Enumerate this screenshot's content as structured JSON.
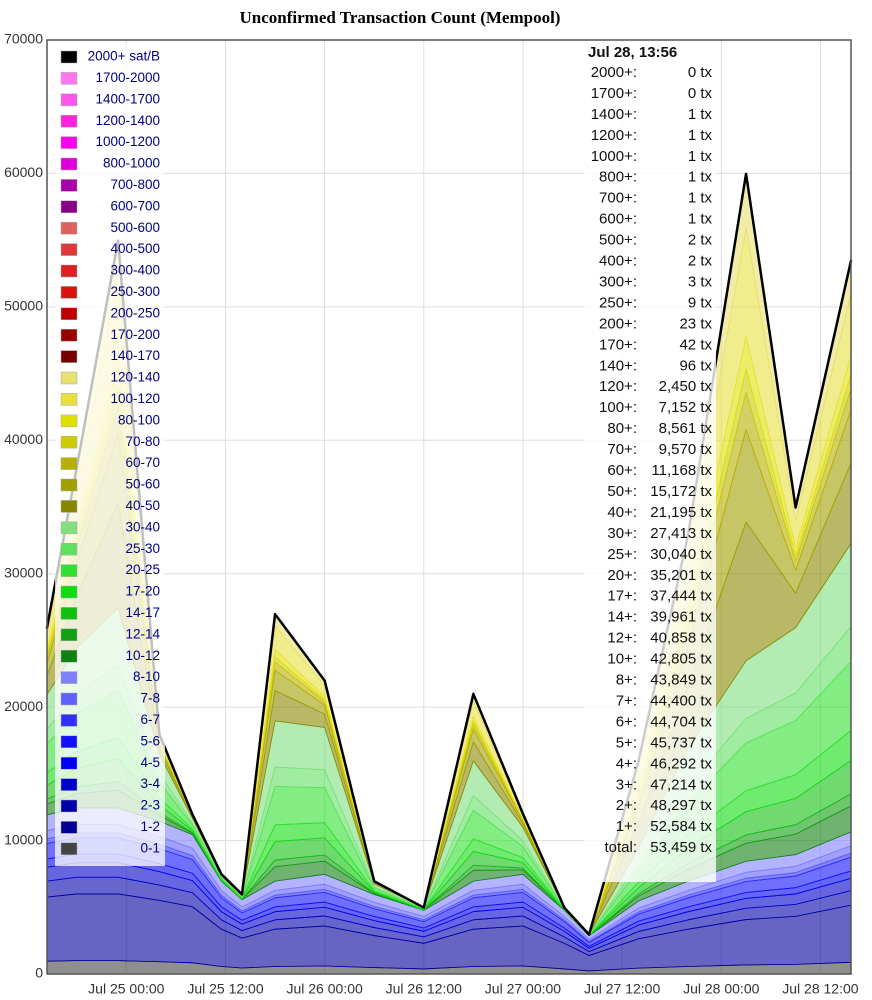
{
  "chart_data": {
    "type": "stacked-area",
    "title": "Unconfirmed Transaction Count (Mempool)",
    "x": [
      -9.6,
      -6,
      -1,
      4,
      8,
      11.5,
      14,
      18,
      24,
      30,
      36,
      42,
      48,
      53,
      56,
      62,
      68,
      75,
      81,
      87.7
    ],
    "xlim": [
      -9.6,
      87.7
    ],
    "xticks": [
      {
        "value": 0,
        "label": "Jul 25 00:00"
      },
      {
        "value": 12,
        "label": "Jul 25 12:00"
      },
      {
        "value": 24,
        "label": "Jul 26 00:00"
      },
      {
        "value": 36,
        "label": "Jul 26 12:00"
      },
      {
        "value": 48,
        "label": "Jul 27 00:00"
      },
      {
        "value": 60,
        "label": "Jul 27 12:00"
      },
      {
        "value": 72,
        "label": "Jul 28 00:00"
      },
      {
        "value": 84,
        "label": "Jul 28 12:00"
      }
    ],
    "ylim": [
      0,
      70000
    ],
    "yticks": [
      0,
      10000,
      20000,
      30000,
      40000,
      50000,
      60000,
      70000
    ],
    "grid": true,
    "series": [
      {
        "name": "0-1",
        "color": "#444444",
        "values": [
          960,
          1000,
          1000,
          920,
          840,
          560,
          450,
          560,
          600,
          480,
          380,
          560,
          600,
          380,
          230,
          440,
          560,
          680,
          720,
          875
        ]
      },
      {
        "name": "1-2",
        "color": "#000099",
        "values": [
          4800,
          5000,
          5000,
          4600,
          4200,
          2800,
          2240,
          2800,
          3000,
          2400,
          1920,
          2800,
          3000,
          1920,
          1160,
          2200,
          2800,
          3400,
          3600,
          4287
        ]
      },
      {
        "name": "2-3",
        "color": "#0000aa",
        "values": [
          1200,
          1250,
          1250,
          1150,
          1050,
          700,
          560,
          700,
          750,
          600,
          480,
          700,
          750,
          480,
          290,
          550,
          700,
          850,
          900,
          1083
        ]
      },
      {
        "name": "3-4",
        "color": "#0000cc",
        "values": [
          1040,
          1090,
          1090,
          1000,
          910,
          610,
          490,
          610,
          650,
          520,
          420,
          610,
          650,
          420,
          250,
          480,
          610,
          740,
          780,
          922
        ]
      },
      {
        "name": "4-5",
        "color": "#0000ee",
        "values": [
          620,
          650,
          650,
          600,
          550,
          360,
          290,
          360,
          390,
          310,
          250,
          360,
          390,
          250,
          150,
          290,
          360,
          440,
          470,
          555
        ]
      },
      {
        "name": "5-6",
        "color": "#1010ff",
        "values": [
          1160,
          1210,
          1210,
          1120,
          1020,
          680,
          540,
          680,
          730,
          580,
          470,
          680,
          730,
          470,
          280,
          530,
          680,
          820,
          870,
          1033
        ]
      },
      {
        "name": "6-7",
        "color": "#3030ff",
        "values": [
          350,
          360,
          360,
          330,
          300,
          200,
          160,
          200,
          220,
          170,
          140,
          200,
          220,
          140,
          80,
          160,
          200,
          250,
          260,
          304
        ]
      },
      {
        "name": "7-8",
        "color": "#6060ff",
        "values": [
          620,
          650,
          650,
          600,
          550,
          360,
          290,
          360,
          390,
          310,
          250,
          360,
          390,
          250,
          150,
          290,
          360,
          440,
          470,
          551
        ]
      },
      {
        "name": "8-10",
        "color": "#8080ff",
        "values": [
          1180,
          1230,
          1230,
          1130,
          1030,
          690,
          550,
          690,
          740,
          590,
          470,
          690,
          740,
          470,
          280,
          540,
          690,
          830,
          880,
          1044
        ]
      },
      {
        "name": "10-12",
        "color": "#108010",
        "values": [
          810,
          1080,
          1350,
          450,
          110,
          40,
          30,
          1080,
          990,
          70,
          20,
          810,
          320,
          20,
          10,
          360,
          900,
          1350,
          1530,
          1947
        ]
      },
      {
        "name": "12-14",
        "color": "#10a010",
        "values": [
          380,
          500,
          630,
          210,
          50,
          20,
          10,
          500,
          460,
          30,
          10,
          380,
          150,
          10,
          0,
          170,
          420,
          630,
          710,
          897
        ]
      },
      {
        "name": "14-17",
        "color": "#10c010",
        "values": [
          1040,
          1390,
          1740,
          580,
          140,
          50,
          30,
          1390,
          1280,
          90,
          20,
          1040,
          410,
          20,
          10,
          460,
          1160,
          1740,
          1970,
          2517
        ]
      },
      {
        "name": "17-20",
        "color": "#10dd10",
        "values": [
          940,
          1250,
          1560,
          520,
          120,
          40,
          30,
          1250,
          1140,
          80,
          20,
          940,
          360,
          20,
          10,
          420,
          1040,
          1560,
          1770,
          2243
        ]
      },
      {
        "name": "20-25",
        "color": "#30e030",
        "values": [
          2150,
          2870,
          3590,
          1200,
          290,
          100,
          70,
          2870,
          2630,
          190,
          50,
          2150,
          840,
          50,
          20,
          960,
          2390,
          3590,
          4060,
          5161
        ]
      },
      {
        "name": "25-30",
        "color": "#60e060",
        "values": [
          1100,
          1460,
          1830,
          610,
          150,
          50,
          40,
          1460,
          1340,
          100,
          20,
          1100,
          430,
          20,
          10,
          490,
          1220,
          1830,
          2070,
          2627
        ]
      },
      {
        "name": "30-40",
        "color": "#80e080",
        "values": [
          2590,
          3460,
          4320,
          1440,
          350,
          120,
          90,
          3460,
          3170,
          230,
          60,
          2590,
          1010,
          60,
          30,
          1150,
          2880,
          4320,
          4900,
          6218
        ]
      },
      {
        "name": "40-50",
        "color": "#888800",
        "values": [
          1430,
          3850,
          7840,
          430,
          90,
          30,
          30,
          2280,
          1000,
          60,
          0,
          1430,
          290,
          0,
          0,
          1850,
          4560,
          10400,
          2570,
          6023
        ]
      },
      {
        "name": "50-60",
        "color": "#a0a000",
        "values": [
          950,
          2570,
          5230,
          290,
          60,
          20,
          20,
          1520,
          670,
          40,
          0,
          950,
          190,
          0,
          0,
          1240,
          3040,
          6940,
          1710,
          4004
        ]
      },
      {
        "name": "60-70",
        "color": "#b8b000",
        "values": [
          380,
          1030,
          2090,
          110,
          20,
          10,
          10,
          610,
          270,
          20,
          0,
          380,
          80,
          0,
          0,
          490,
          1220,
          2770,
          680,
          1598
        ]
      },
      {
        "name": "70-80",
        "color": "#cccc00",
        "values": [
          240,
          650,
          1320,
          70,
          10,
          0,
          0,
          380,
          170,
          10,
          0,
          240,
          50,
          0,
          0,
          310,
          770,
          1750,
          430,
          1009
        ]
      },
      {
        "name": "80-100",
        "color": "#e0e000",
        "values": [
          340,
          900,
          1840,
          100,
          20,
          10,
          10,
          540,
          230,
          10,
          0,
          340,
          70,
          0,
          0,
          440,
          1070,
          2450,
          600,
          1409
        ]
      },
      {
        "name": "100-120",
        "color": "#e8e040",
        "values": [
          1120,
          3010,
          6130,
          330,
          70,
          20,
          20,
          1780,
          780,
          40,
          0,
          1120,
          220,
          0,
          0,
          1450,
          3570,
          8140,
          2010,
          4702
        ]
      },
      {
        "name": "120-140",
        "color": "#e8e070",
        "values": [
          560,
          1500,
          3050,
          170,
          30,
          10,
          10,
          890,
          390,
          20,
          0,
          560,
          110,
          0,
          0,
          720,
          1780,
          4050,
          1000,
          2354
        ]
      },
      {
        "name": "140-170",
        "color": "#770000",
        "values": [
          0,
          0,
          0,
          0,
          0,
          0,
          0,
          0,
          0,
          0,
          0,
          0,
          0,
          0,
          0,
          0,
          0,
          0,
          0,
          54
        ]
      },
      {
        "name": "170-200",
        "color": "#990000",
        "values": [
          0,
          0,
          0,
          0,
          0,
          0,
          0,
          0,
          0,
          0,
          0,
          0,
          0,
          0,
          0,
          0,
          0,
          0,
          0,
          19
        ]
      },
      {
        "name": "200-250",
        "color": "#bb0000",
        "values": [
          0,
          0,
          0,
          0,
          0,
          0,
          0,
          0,
          0,
          0,
          0,
          0,
          0,
          0,
          0,
          0,
          0,
          0,
          0,
          14
        ]
      },
      {
        "name": "250-300",
        "color": "#dd1010",
        "values": [
          0,
          0,
          0,
          0,
          0,
          0,
          0,
          0,
          0,
          0,
          0,
          0,
          0,
          0,
          0,
          0,
          0,
          0,
          0,
          6
        ]
      },
      {
        "name": "300-400",
        "color": "#dd2020",
        "values": [
          0,
          0,
          0,
          0,
          0,
          0,
          0,
          0,
          0,
          0,
          0,
          0,
          0,
          0,
          0,
          0,
          0,
          0,
          0,
          1
        ]
      },
      {
        "name": "400-500",
        "color": "#e03838",
        "values": [
          0,
          0,
          0,
          0,
          0,
          0,
          0,
          0,
          0,
          0,
          0,
          0,
          0,
          0,
          0,
          0,
          0,
          0,
          0,
          0
        ]
      },
      {
        "name": "500-600",
        "color": "#e06060",
        "values": [
          0,
          0,
          0,
          0,
          0,
          0,
          0,
          0,
          0,
          0,
          0,
          0,
          0,
          0,
          0,
          0,
          0,
          0,
          0,
          1
        ]
      },
      {
        "name": "600-700",
        "color": "#880088",
        "values": [
          0,
          0,
          0,
          0,
          0,
          0,
          0,
          0,
          0,
          0,
          0,
          0,
          0,
          0,
          0,
          0,
          0,
          0,
          0,
          0
        ]
      },
      {
        "name": "700-800",
        "color": "#aa00aa",
        "values": [
          0,
          0,
          0,
          0,
          0,
          0,
          0,
          0,
          0,
          0,
          0,
          0,
          0,
          0,
          0,
          0,
          0,
          0,
          0,
          0
        ]
      },
      {
        "name": "800-1000",
        "color": "#dd00dd",
        "values": [
          0,
          0,
          0,
          0,
          0,
          0,
          0,
          0,
          0,
          0,
          0,
          0,
          0,
          0,
          0,
          0,
          0,
          0,
          0,
          0
        ]
      },
      {
        "name": "1000-1200",
        "color": "#ff00ee",
        "values": [
          0,
          0,
          0,
          0,
          0,
          0,
          0,
          0,
          0,
          0,
          0,
          0,
          0,
          0,
          0,
          0,
          0,
          0,
          0,
          0
        ]
      },
      {
        "name": "1200-1400",
        "color": "#ff22dd",
        "values": [
          0,
          0,
          0,
          0,
          0,
          0,
          0,
          0,
          0,
          0,
          0,
          0,
          0,
          0,
          0,
          0,
          0,
          0,
          0,
          0
        ]
      },
      {
        "name": "1400-1700",
        "color": "#ff55ee",
        "values": [
          0,
          0,
          0,
          0,
          0,
          0,
          0,
          0,
          0,
          0,
          0,
          0,
          0,
          0,
          0,
          0,
          0,
          0,
          0,
          1
        ]
      },
      {
        "name": "1700-2000",
        "color": "#ff77ee",
        "values": [
          0,
          0,
          0,
          0,
          0,
          0,
          0,
          0,
          0,
          0,
          0,
          0,
          0,
          0,
          0,
          0,
          0,
          0,
          0,
          0
        ]
      },
      {
        "name": "2000+ sat/B",
        "color": "#000000",
        "values": [
          0,
          0,
          0,
          0,
          0,
          0,
          0,
          0,
          0,
          0,
          0,
          0,
          0,
          0,
          0,
          0,
          0,
          0,
          0,
          0
        ]
      }
    ],
    "tooltip": {
      "title": "Jul 28, 13:56",
      "rows": [
        {
          "label": "2000+:",
          "value": "0 tx"
        },
        {
          "label": "1700+:",
          "value": "0 tx"
        },
        {
          "label": "1400+:",
          "value": "1 tx"
        },
        {
          "label": "1200+:",
          "value": "1 tx"
        },
        {
          "label": "1000+:",
          "value": "1 tx"
        },
        {
          "label": "800+:",
          "value": "1 tx"
        },
        {
          "label": "700+:",
          "value": "1 tx"
        },
        {
          "label": "600+:",
          "value": "1 tx"
        },
        {
          "label": "500+:",
          "value": "2 tx"
        },
        {
          "label": "400+:",
          "value": "2 tx"
        },
        {
          "label": "300+:",
          "value": "3 tx"
        },
        {
          "label": "250+:",
          "value": "9 tx"
        },
        {
          "label": "200+:",
          "value": "23 tx"
        },
        {
          "label": "170+:",
          "value": "42 tx"
        },
        {
          "label": "140+:",
          "value": "96 tx"
        },
        {
          "label": "120+:",
          "value": "2,450 tx"
        },
        {
          "label": "100+:",
          "value": "7,152 tx"
        },
        {
          "label": "80+:",
          "value": "8,561 tx"
        },
        {
          "label": "70+:",
          "value": "9,570 tx"
        },
        {
          "label": "60+:",
          "value": "11,168 tx"
        },
        {
          "label": "50+:",
          "value": "15,172 tx"
        },
        {
          "label": "40+:",
          "value": "21,195 tx"
        },
        {
          "label": "30+:",
          "value": "27,413 tx"
        },
        {
          "label": "25+:",
          "value": "30,040 tx"
        },
        {
          "label": "20+:",
          "value": "35,201 tx"
        },
        {
          "label": "17+:",
          "value": "37,444 tx"
        },
        {
          "label": "14+:",
          "value": "39,961 tx"
        },
        {
          "label": "12+:",
          "value": "40,858 tx"
        },
        {
          "label": "10+:",
          "value": "42,805 tx"
        },
        {
          "label": "8+:",
          "value": "43,849 tx"
        },
        {
          "label": "7+:",
          "value": "44,400 tx"
        },
        {
          "label": "6+:",
          "value": "44,704 tx"
        },
        {
          "label": "5+:",
          "value": "45,737 tx"
        },
        {
          "label": "4+:",
          "value": "46,292 tx"
        },
        {
          "label": "3+:",
          "value": "47,214 tx"
        },
        {
          "label": "2+:",
          "value": "48,297 tx"
        },
        {
          "label": "1+:",
          "value": "52,584 tx"
        },
        {
          "label": "total:",
          "value": "53,459 tx"
        }
      ]
    }
  }
}
